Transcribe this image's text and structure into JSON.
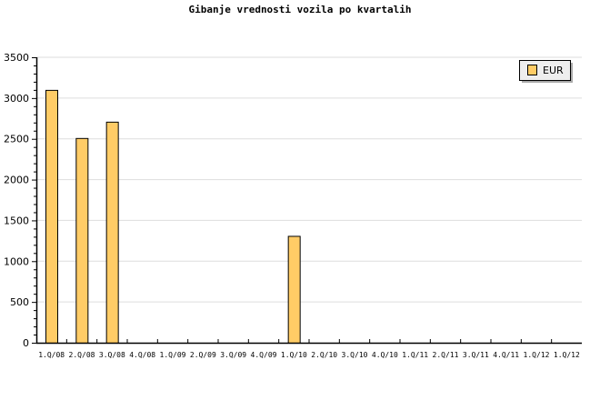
{
  "chart_data": {
    "type": "bar",
    "title": "Gibanje vrednosti vozila po kvartalih",
    "xlabel": "",
    "ylabel": "",
    "categories": [
      "1.Q/08",
      "2.Q/08",
      "3.Q/08",
      "4.Q/08",
      "1.Q/09",
      "2.Q/09",
      "3.Q/09",
      "4.Q/09",
      "1.Q/10",
      "2.Q/10",
      "3.Q/10",
      "4.Q/10",
      "1.Q/11",
      "2.Q/11",
      "3.Q/11",
      "4.Q/11",
      "1.Q/12",
      "1.Q/12"
    ],
    "series": [
      {
        "name": "EUR",
        "color": "#ffcc66",
        "values": [
          3100,
          2510,
          2710,
          null,
          null,
          null,
          null,
          null,
          1310,
          null,
          null,
          null,
          null,
          null,
          null,
          null,
          null,
          null
        ]
      }
    ],
    "ylim": [
      0,
      3500
    ],
    "yticks": [
      0,
      500,
      1000,
      1500,
      2000,
      2500,
      3000,
      3500
    ],
    "grid": true,
    "legend": "top-right"
  }
}
